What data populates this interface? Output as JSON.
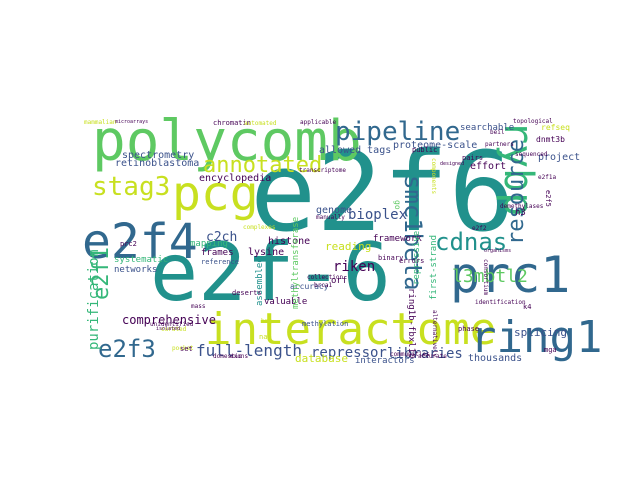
{
  "colors": {
    "background": "#ffffff",
    "palette": [
      "#440154",
      "#3b528b",
      "#21918c",
      "#5ec962",
      "#fde725",
      "#31688e",
      "#35b779",
      "#90d743",
      "#c8e020",
      "#482878"
    ]
  },
  "words": [
    {
      "text": "e2f6",
      "color": "#21918c"
    },
    {
      "text": "e2f-6",
      "color": "#21918c"
    },
    {
      "text": "polycomb",
      "color": "#5ec962"
    },
    {
      "text": "interactome",
      "color": "#c8e020"
    },
    {
      "text": "pcg",
      "color": "#c8e020"
    },
    {
      "text": "e2f4",
      "color": "#31688e"
    },
    {
      "text": "prc1",
      "color": "#31688e"
    },
    {
      "text": "rybp",
      "color": "#35b779"
    },
    {
      "text": "ring1",
      "color": "#31688e"
    },
    {
      "text": "pipeline",
      "color": "#31688e"
    },
    {
      "text": "stag3",
      "color": "#c8e020"
    },
    {
      "text": "annotated",
      "color": "#c8e020"
    },
    {
      "text": "cdnas",
      "color": "#21918c"
    },
    {
      "text": "smc1beta",
      "color": "#31688e"
    },
    {
      "text": "resource",
      "color": "#31688e"
    },
    {
      "text": "l3mbtl2",
      "color": "#5ec962"
    },
    {
      "text": "e2f3",
      "color": "#31688e"
    },
    {
      "text": "e2f1",
      "color": "#35b779"
    },
    {
      "text": "full-length",
      "color": "#3b528b"
    },
    {
      "text": "purification",
      "color": "#35b779"
    },
    {
      "text": "repressor",
      "color": "#3b528b"
    },
    {
      "text": "libraries",
      "color": "#3b528b"
    },
    {
      "text": "riken",
      "color": "#440154"
    },
    {
      "text": "bioplex",
      "color": "#3b528b"
    },
    {
      "text": "comprehensive",
      "color": "#440154"
    },
    {
      "text": "c2ch",
      "color": "#3b528b"
    },
    {
      "text": "spectrometry",
      "color": "#3b528b"
    },
    {
      "text": "retinoblastoma",
      "color": "#3b528b"
    },
    {
      "text": "encyclopedia",
      "color": "#440154"
    },
    {
      "text": "proteome-scale",
      "color": "#3b528b"
    },
    {
      "text": "allowed tags",
      "color": "#3b528b"
    },
    {
      "text": "searchable",
      "color": "#3b528b"
    },
    {
      "text": "genome",
      "color": "#3b528b"
    },
    {
      "text": "project",
      "color": "#3b528b"
    },
    {
      "text": "effort",
      "color": "#440154"
    },
    {
      "text": "histone",
      "color": "#440154"
    },
    {
      "text": "lysine",
      "color": "#440154"
    },
    {
      "text": "frames",
      "color": "#440154"
    },
    {
      "text": "networks",
      "color": "#3b528b"
    },
    {
      "text": "systematic",
      "color": "#35b779"
    },
    {
      "text": "mapping",
      "color": "#35b779"
    },
    {
      "text": "reading",
      "color": "#c8e020"
    },
    {
      "text": "framework",
      "color": "#440154"
    },
    {
      "text": "repressive",
      "color": "#35b779"
    },
    {
      "text": "first-strand",
      "color": "#35b779"
    },
    {
      "text": "thousands",
      "color": "#3b528b"
    },
    {
      "text": "splicing",
      "color": "#3b528b"
    },
    {
      "text": "database",
      "color": "#c8e020"
    },
    {
      "text": "interactors",
      "color": "#3b528b"
    },
    {
      "text": "valuable",
      "color": "#440154"
    },
    {
      "text": "accuracy",
      "color": "#3b528b"
    },
    {
      "text": "orf",
      "color": "#440154"
    },
    {
      "text": "methylation",
      "color": "#3b528b"
    },
    {
      "text": "ring1b-fbxl10",
      "color": "#440154"
    },
    {
      "text": "assembled",
      "color": "#21918c"
    },
    {
      "text": "methyltransferase",
      "color": "#5ec962"
    },
    {
      "text": "chromatin",
      "color": "#440154"
    },
    {
      "text": "refseq",
      "color": "#c8e020"
    },
    {
      "text": "dnmt3b",
      "color": "#440154"
    },
    {
      "text": "h3",
      "color": "#440154"
    },
    {
      "text": "e2f5",
      "color": "#440154"
    },
    {
      "text": "k4",
      "color": "#440154"
    },
    {
      "text": "mga",
      "color": "#440154"
    },
    {
      "text": "public",
      "color": "#440154"
    },
    {
      "text": "pairs",
      "color": "#440154"
    },
    {
      "text": "phase",
      "color": "#440154"
    },
    {
      "text": "binary",
      "color": "#440154"
    },
    {
      "text": "errors",
      "color": "#440154"
    },
    {
      "text": "deserts",
      "color": "#440154"
    },
    {
      "text": "prc2",
      "color": "#440154"
    },
    {
      "text": "reference",
      "color": "#3b528b"
    },
    {
      "text": "go",
      "color": "#5ec962"
    },
    {
      "text": "e2f2",
      "color": "#440154"
    },
    {
      "text": "e2f1a",
      "color": "#440154"
    },
    {
      "text": "components",
      "color": "#c8e020"
    },
    {
      "text": "partners",
      "color": "#440154"
    },
    {
      "text": "sequenced",
      "color": "#440154"
    },
    {
      "text": "mammalian",
      "color": "#c8e020"
    },
    {
      "text": "automated",
      "color": "#c8e020"
    },
    {
      "text": "applicable",
      "color": "#440154"
    },
    {
      "text": "topological",
      "color": "#440154"
    },
    {
      "text": "demethylases",
      "color": "#440154"
    },
    {
      "text": "consortium",
      "color": "#440154"
    },
    {
      "text": "communities",
      "color": "#440154"
    },
    {
      "text": "accurate",
      "color": "#440154"
    },
    {
      "text": "identification",
      "color": "#440154"
    },
    {
      "text": "collection",
      "color": "#440154"
    },
    {
      "text": "brca1",
      "color": "#440154"
    },
    {
      "text": "manually",
      "color": "#440154"
    },
    {
      "text": "curated",
      "color": "#c8e020"
    },
    {
      "text": "domestic",
      "color": "#440154"
    },
    {
      "text": "exons",
      "color": "#440154"
    },
    {
      "text": "transcriptome",
      "color": "#440154"
    },
    {
      "text": "unidentified",
      "color": "#440154"
    },
    {
      "text": "pocket",
      "color": "#c8e020"
    },
    {
      "text": "complexes",
      "color": "#c8e020"
    },
    {
      "text": "alternatively",
      "color": "#440154"
    },
    {
      "text": "beil",
      "color": "#440154"
    },
    {
      "text": "mass",
      "color": "#440154"
    },
    {
      "text": "set",
      "color": "#440154"
    },
    {
      "text": "nap",
      "color": "#c8e020"
    },
    {
      "text": "hmg",
      "color": "#c8e020"
    },
    {
      "text": "microarrays",
      "color": "#440154"
    },
    {
      "text": "organisms",
      "color": "#440154"
    },
    {
      "text": "designed",
      "color": "#440154"
    },
    {
      "text": "isolated",
      "color": "#440154"
    }
  ]
}
